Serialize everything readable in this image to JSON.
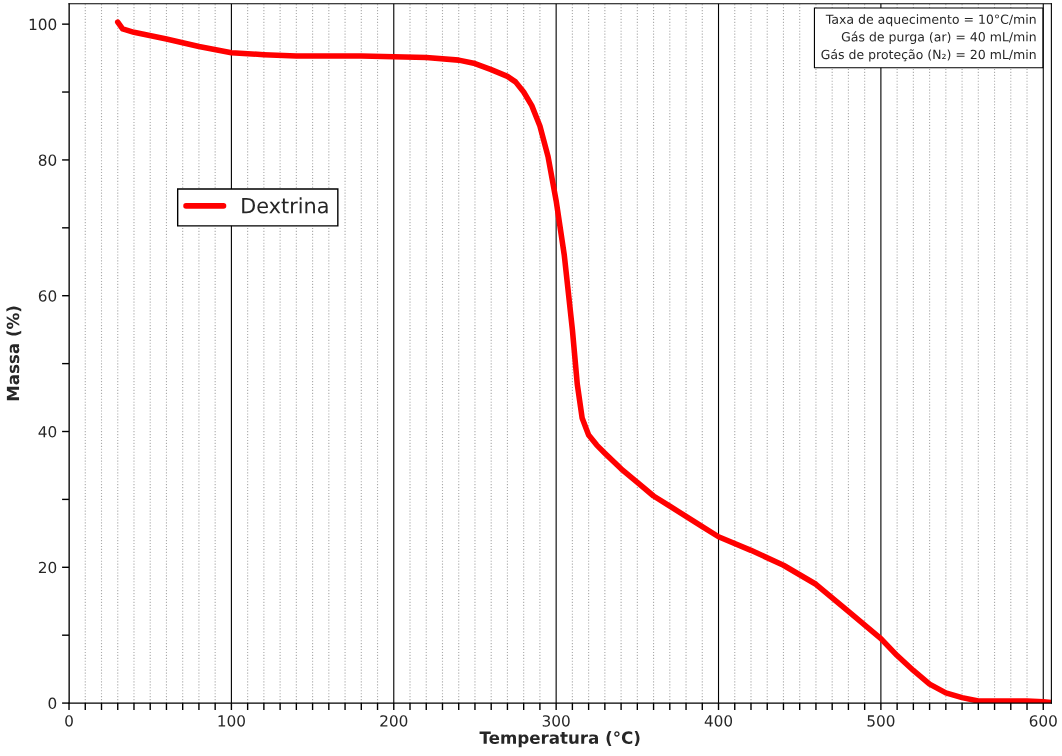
{
  "chart_data": {
    "type": "line",
    "xlabel": "Temperatura (°C)",
    "ylabel": "Massa (%)",
    "x": [
      30,
      33,
      40,
      60,
      80,
      100,
      120,
      140,
      160,
      180,
      200,
      220,
      240,
      250,
      260,
      270,
      275,
      280,
      285,
      290,
      295,
      300,
      305,
      310,
      313,
      316,
      320,
      325,
      330,
      340,
      350,
      360,
      370,
      380,
      390,
      400,
      420,
      440,
      460,
      480,
      500,
      510,
      520,
      530,
      540,
      550,
      560,
      580,
      590,
      600,
      605
    ],
    "series": [
      {
        "name": "Dextrina",
        "color": "#ff0000",
        "values": [
          100.3,
          99.3,
          98.8,
          97.8,
          96.7,
          95.8,
          95.5,
          95.3,
          95.3,
          95.3,
          95.2,
          95.1,
          94.7,
          94.2,
          93.3,
          92.3,
          91.5,
          90,
          88,
          85,
          80.5,
          74,
          66,
          55,
          47,
          42,
          39.5,
          38,
          36.8,
          34.5,
          32.5,
          30.5,
          29,
          27.5,
          26,
          24.5,
          22.5,
          20.3,
          17.5,
          13.5,
          9.5,
          7,
          4.8,
          2.8,
          1.5,
          0.8,
          0.3,
          0.3,
          0.3,
          0.2,
          0.1
        ]
      }
    ],
    "xlim": [
      0,
      605
    ],
    "ylim": [
      0,
      103
    ],
    "xticks": [
      0,
      {
        "value": 10,
        "label": null
      },
      {
        "value": 20,
        "label": null
      },
      {
        "value": 30,
        "label": null
      },
      {
        "value": 40,
        "label": null
      },
      {
        "value": 50,
        "label": null
      },
      {
        "value": 60,
        "label": null
      },
      {
        "value": 70,
        "label": null
      },
      {
        "value": 80,
        "label": null
      },
      {
        "value": 90,
        "label": null
      },
      100,
      {
        "value": 110,
        "label": null
      },
      {
        "value": 120,
        "label": null
      },
      {
        "value": 130,
        "label": null
      },
      {
        "value": 140,
        "label": null
      },
      {
        "value": 150,
        "label": null
      },
      {
        "value": 160,
        "label": null
      },
      {
        "value": 170,
        "label": null
      },
      {
        "value": 180,
        "label": null
      },
      {
        "value": 190,
        "label": null
      },
      200,
      {
        "value": 210,
        "label": null
      },
      {
        "value": 220,
        "label": null
      },
      {
        "value": 230,
        "label": null
      },
      {
        "value": 240,
        "label": null
      },
      {
        "value": 250,
        "label": null
      },
      {
        "value": 260,
        "label": null
      },
      {
        "value": 270,
        "label": null
      },
      {
        "value": 280,
        "label": null
      },
      {
        "value": 290,
        "label": null
      },
      300,
      {
        "value": 310,
        "label": null
      },
      {
        "value": 320,
        "label": null
      },
      {
        "value": 330,
        "label": null
      },
      {
        "value": 340,
        "label": null
      },
      {
        "value": 350,
        "label": null
      },
      {
        "value": 360,
        "label": null
      },
      {
        "value": 370,
        "label": null
      },
      {
        "value": 380,
        "label": null
      },
      {
        "value": 390,
        "label": null
      },
      400,
      {
        "value": 410,
        "label": null
      },
      {
        "value": 420,
        "label": null
      },
      {
        "value": 430,
        "label": null
      },
      {
        "value": 440,
        "label": null
      },
      {
        "value": 450,
        "label": null
      },
      {
        "value": 460,
        "label": null
      },
      {
        "value": 470,
        "label": null
      },
      {
        "value": 480,
        "label": null
      },
      {
        "value": 490,
        "label": null
      },
      500,
      {
        "value": 510,
        "label": null
      },
      {
        "value": 520,
        "label": null
      },
      {
        "value": 530,
        "label": null
      },
      {
        "value": 540,
        "label": null
      },
      {
        "value": 550,
        "label": null
      },
      {
        "value": 560,
        "label": null
      },
      {
        "value": 570,
        "label": null
      },
      {
        "value": 580,
        "label": null
      },
      {
        "value": 590,
        "label": null
      },
      600
    ],
    "yticks": [
      0,
      {
        "value": 10,
        "label": null
      },
      20,
      {
        "value": 30,
        "label": null
      },
      40,
      {
        "value": 50,
        "label": null
      },
      60,
      {
        "value": 70,
        "label": null
      },
      80,
      {
        "value": 90,
        "label": null
      },
      100
    ],
    "grid": "x",
    "legend": "upper left",
    "marker": "none",
    "line_style": "solid",
    "annotations": [
      "Taxa de aquecimento = 10°C/min",
      "Gás de purga (ar) = 40 mL/min",
      "Gás de proteção (N₂) = 20 mL/min"
    ]
  }
}
